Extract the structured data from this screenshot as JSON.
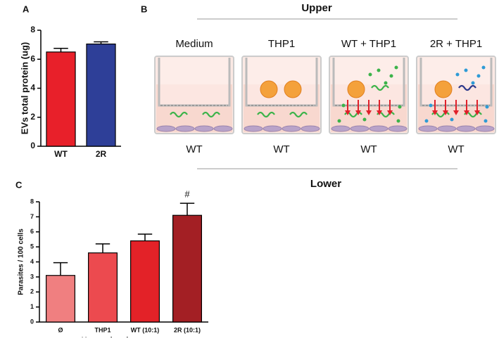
{
  "panels": [
    "A",
    "B",
    "C"
  ],
  "chart_data": [
    {
      "type": "bar",
      "ylabel": "EVs total protein (ug)",
      "categories": [
        "WT",
        "2R"
      ],
      "values": [
        6.5,
        7.05
      ],
      "errors": [
        0.25,
        0.15
      ],
      "colors": [
        "#e8202a",
        "#2e3f98"
      ],
      "ylim": [
        0,
        8
      ],
      "yticks": [
        0,
        2,
        4,
        6,
        8
      ]
    },
    {
      "type": "bar",
      "ylabel": "Parasites / 100 cells",
      "xlabel": "Upper chamber",
      "categories": [
        "Ø",
        "THP1",
        "WT (10:1)",
        "2R (10:1)"
      ],
      "values": [
        3.1,
        4.6,
        5.4,
        7.1
      ],
      "errors": [
        0.85,
        0.6,
        0.45,
        0.8
      ],
      "value_annotations": [
        null,
        null,
        null,
        "#"
      ],
      "colors": [
        "#f07f80",
        "#ec4a4f",
        "#e32228",
        "#a31f24"
      ],
      "ylim": [
        0,
        8
      ],
      "yticks": [
        0,
        1,
        2,
        3,
        4,
        5,
        6,
        7,
        8
      ]
    }
  ],
  "diagram": {
    "upper": "Upper",
    "lower": "Lower",
    "wells": [
      {
        "top": "Medium",
        "bottom": "WT"
      },
      {
        "top": "THP1",
        "bottom": "WT"
      },
      {
        "top": "WT + THP1",
        "bottom": "WT"
      },
      {
        "top": "2R + THP1",
        "bottom": "WT"
      }
    ]
  }
}
